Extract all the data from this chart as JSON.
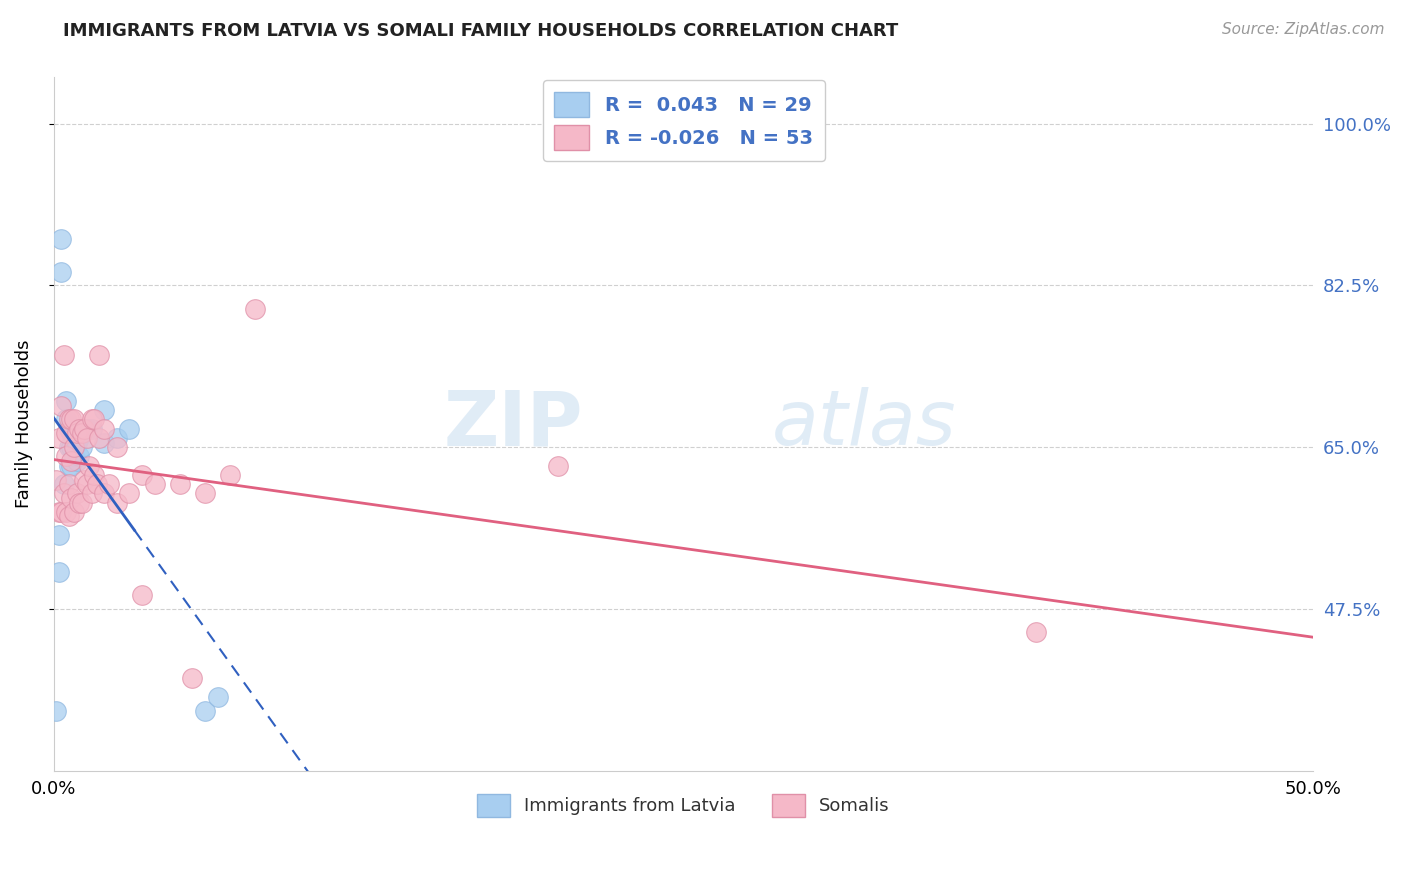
{
  "title": "IMMIGRANTS FROM LATVIA VS SOMALI FAMILY HOUSEHOLDS CORRELATION CHART",
  "source": "Source: ZipAtlas.com",
  "ylabel": "Family Households",
  "y_tick_labels": [
    "100.0%",
    "82.5%",
    "65.0%",
    "47.5%"
  ],
  "y_tick_values": [
    1.0,
    0.825,
    0.65,
    0.475
  ],
  "legend_label1": "Immigrants from Latvia",
  "legend_label2": "Somalis",
  "R1": 0.043,
  "N1": 29,
  "R2": -0.026,
  "N2": 53,
  "color_blue": "#a8cef0",
  "color_pink": "#f5b8c8",
  "color_blue_line": "#3060c0",
  "color_pink_line": "#e06080",
  "watermark_zip": "ZIP",
  "watermark_atlas": "atlas",
  "blue_scatter_x": [
    0.001,
    0.002,
    0.002,
    0.003,
    0.003,
    0.004,
    0.005,
    0.005,
    0.006,
    0.006,
    0.006,
    0.007,
    0.007,
    0.007,
    0.008,
    0.008,
    0.009,
    0.009,
    0.01,
    0.01,
    0.011,
    0.013,
    0.015,
    0.02,
    0.02,
    0.025,
    0.03,
    0.06,
    0.065
  ],
  "blue_scatter_y": [
    0.365,
    0.515,
    0.555,
    0.84,
    0.875,
    0.61,
    0.68,
    0.7,
    0.63,
    0.65,
    0.67,
    0.63,
    0.65,
    0.665,
    0.64,
    0.66,
    0.635,
    0.655,
    0.64,
    0.66,
    0.65,
    0.67,
    0.67,
    0.655,
    0.69,
    0.66,
    0.67,
    0.365,
    0.38
  ],
  "pink_scatter_x": [
    0.001,
    0.002,
    0.002,
    0.003,
    0.003,
    0.004,
    0.004,
    0.005,
    0.005,
    0.005,
    0.006,
    0.006,
    0.006,
    0.007,
    0.007,
    0.007,
    0.008,
    0.008,
    0.008,
    0.009,
    0.009,
    0.01,
    0.01,
    0.011,
    0.011,
    0.012,
    0.012,
    0.013,
    0.013,
    0.014,
    0.015,
    0.015,
    0.016,
    0.016,
    0.017,
    0.018,
    0.018,
    0.02,
    0.02,
    0.022,
    0.025,
    0.025,
    0.03,
    0.035,
    0.035,
    0.04,
    0.05,
    0.055,
    0.06,
    0.07,
    0.08,
    0.2,
    0.39
  ],
  "pink_scatter_y": [
    0.615,
    0.58,
    0.66,
    0.58,
    0.695,
    0.6,
    0.75,
    0.58,
    0.64,
    0.665,
    0.575,
    0.61,
    0.68,
    0.595,
    0.635,
    0.68,
    0.58,
    0.65,
    0.68,
    0.6,
    0.665,
    0.59,
    0.67,
    0.59,
    0.665,
    0.615,
    0.67,
    0.61,
    0.66,
    0.63,
    0.6,
    0.68,
    0.62,
    0.68,
    0.61,
    0.66,
    0.75,
    0.6,
    0.67,
    0.61,
    0.59,
    0.65,
    0.6,
    0.62,
    0.49,
    0.61,
    0.61,
    0.4,
    0.6,
    0.62,
    0.8,
    0.63,
    0.45
  ],
  "xlim": [
    0.0,
    0.5
  ],
  "ylim": [
    0.3,
    1.05
  ],
  "x_tick_positions": [
    0.0,
    0.1,
    0.2,
    0.3,
    0.4,
    0.5
  ],
  "x_tick_labels": [
    "0.0%",
    "",
    "",
    "",
    "",
    "50.0%"
  ],
  "background_color": "#ffffff",
  "grid_color": "#d0d0d0"
}
